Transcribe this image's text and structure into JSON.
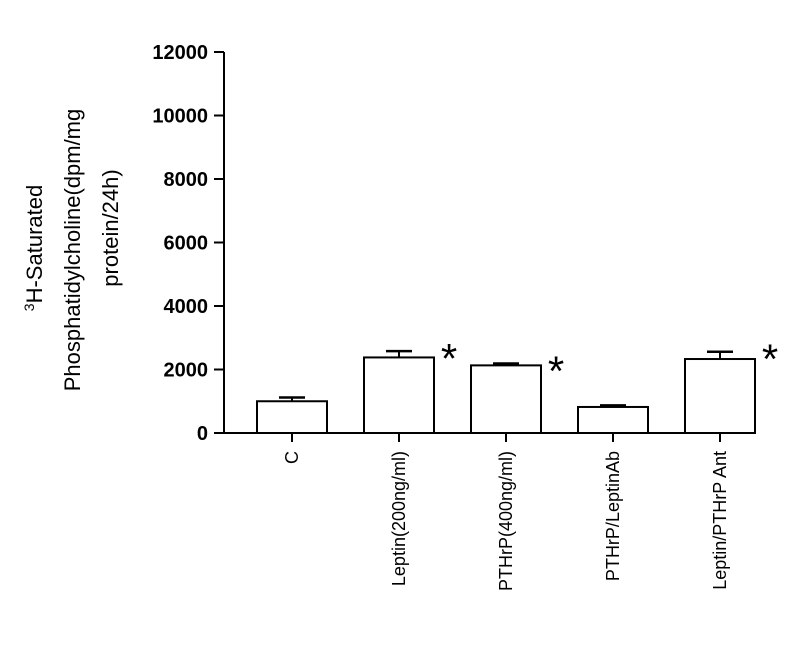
{
  "chart_data": {
    "type": "bar",
    "title": "",
    "ylabel": {
      "superscript": "3",
      "line1": "H-Saturated",
      "line2": "Phosphatidylcholine(dpm/mg",
      "line3": "protein/24h)"
    },
    "xlabel": "",
    "ylim": [
      0,
      12000
    ],
    "yticks": [
      0,
      2000,
      4000,
      6000,
      8000,
      10000,
      12000
    ],
    "grid": false,
    "categories": [
      "C",
      "Leptin(200ng/ml)",
      "PTHrP(400ng/ml)",
      "PTHrP/LeptinAb",
      "Leptin/PTHrP Ant"
    ],
    "values": [
      1000,
      2380,
      2130,
      820,
      2330
    ],
    "errors": [
      120,
      200,
      60,
      50,
      230
    ],
    "significance": [
      "",
      "*",
      "*",
      "",
      "*"
    ],
    "colors": {
      "bar_fill": "#ffffff",
      "bar_stroke": "#000000",
      "axis": "#000000"
    }
  }
}
